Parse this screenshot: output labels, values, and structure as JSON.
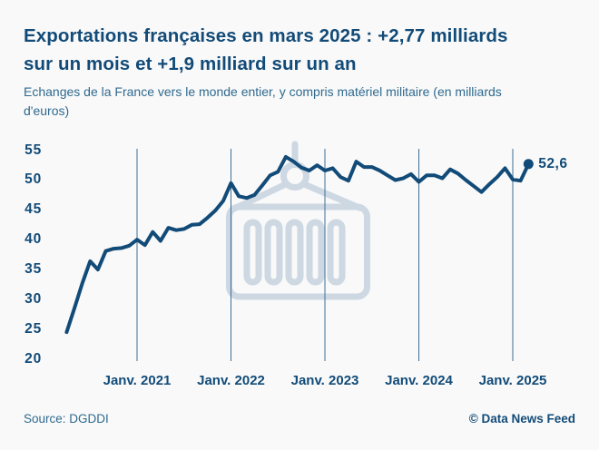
{
  "header": {
    "title": "Exportations françaises en mars 2025 : +2,77 milliards sur un mois et +1,9 milliard sur un an",
    "subtitle": "Echanges de la France vers le monde entier, y compris matériel militaire (en milliards d'euros)"
  },
  "footer": {
    "source": "Source: DGDDI",
    "credit": "© Data News Feed"
  },
  "colors": {
    "dark_blue": "#124b78",
    "medium_blue": "#2f6a8f",
    "gridline": "#3f6e96",
    "watermark": "#cdd8e2",
    "background": "#f9f9f9"
  },
  "watermark_icon": "shipping-container-hanging-from-crane-hook",
  "chart_data": {
    "type": "line",
    "unit": "milliards d'euros",
    "ylim": [
      20,
      55
    ],
    "yticks": [
      55,
      50,
      45,
      40,
      35,
      30,
      25,
      20
    ],
    "grid": "vertical-year-lines-only",
    "legend": "none",
    "x_tick_labels": [
      "Janv. 2021",
      "Janv. 2022",
      "Janv. 2023",
      "Janv. 2024",
      "Janv. 2025"
    ],
    "x_tick_month_indices": [
      9,
      21,
      33,
      45,
      57
    ],
    "x_months": [
      "2020-04",
      "2020-05",
      "2020-06",
      "2020-07",
      "2020-08",
      "2020-09",
      "2020-10",
      "2020-11",
      "2020-12",
      "2021-01",
      "2021-02",
      "2021-03",
      "2021-04",
      "2021-05",
      "2021-06",
      "2021-07",
      "2021-08",
      "2021-09",
      "2021-10",
      "2021-11",
      "2021-12",
      "2022-01",
      "2022-02",
      "2022-03",
      "2022-04",
      "2022-05",
      "2022-06",
      "2022-07",
      "2022-08",
      "2022-09",
      "2022-10",
      "2022-11",
      "2022-12",
      "2023-01",
      "2023-02",
      "2023-03",
      "2023-04",
      "2023-05",
      "2023-06",
      "2023-07",
      "2023-08",
      "2023-09",
      "2023-10",
      "2023-11",
      "2023-12",
      "2024-01",
      "2024-02",
      "2024-03",
      "2024-04",
      "2024-05",
      "2024-06",
      "2024-07",
      "2024-08",
      "2024-09",
      "2024-10",
      "2024-11",
      "2024-12",
      "2025-01",
      "2025-02",
      "2025-03"
    ],
    "series": [
      {
        "name": "Exportations de la France (milliards d'euros)",
        "values": [
          24.4,
          28.4,
          32.6,
          36.3,
          34.9,
          38.0,
          38.4,
          38.5,
          38.9,
          39.9,
          39.0,
          41.2,
          39.7,
          41.9,
          41.5,
          41.7,
          42.4,
          42.5,
          43.6,
          44.8,
          46.4,
          49.4,
          47.2,
          46.9,
          47.4,
          49.0,
          50.7,
          51.3,
          53.8,
          53.0,
          52.0,
          51.5,
          52.4,
          51.5,
          51.9,
          50.4,
          49.8,
          53.0,
          52.1,
          52.1,
          51.5,
          50.7,
          49.9,
          50.2,
          50.9,
          49.6,
          50.7,
          50.7,
          50.2,
          51.7,
          51.0,
          49.9,
          48.9,
          47.9,
          49.2,
          50.4,
          51.9,
          50.0,
          49.8,
          52.6
        ]
      }
    ],
    "end_point_label": "52,6",
    "end_point_value": 52.6
  }
}
